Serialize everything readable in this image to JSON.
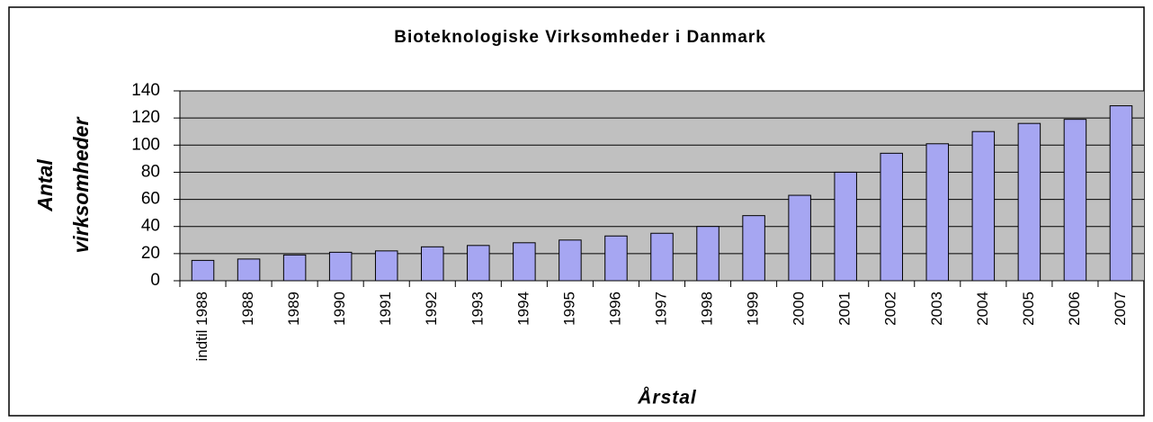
{
  "chart_data": {
    "type": "bar",
    "title": "Bioteknologiske Virksomheder i Danmark",
    "xlabel": "Årstal",
    "ylabel": [
      "Antal",
      "virksomheder"
    ],
    "categories": [
      "indtil 1988",
      "1988",
      "1989",
      "1990",
      "1991",
      "1992",
      "1993",
      "1994",
      "1995",
      "1996",
      "1997",
      "1998",
      "1999",
      "2000",
      "2001",
      "2002",
      "2003",
      "2004",
      "2005",
      "2006",
      "2007"
    ],
    "values": [
      15,
      16,
      19,
      21,
      22,
      25,
      26,
      28,
      30,
      33,
      35,
      40,
      48,
      63,
      80,
      94,
      101,
      110,
      116,
      119,
      129
    ],
    "color": "#a6a6f2",
    "ylim": [
      0,
      140
    ],
    "yticks": [
      0,
      20,
      40,
      60,
      80,
      100,
      120,
      140
    ],
    "grid": true
  }
}
